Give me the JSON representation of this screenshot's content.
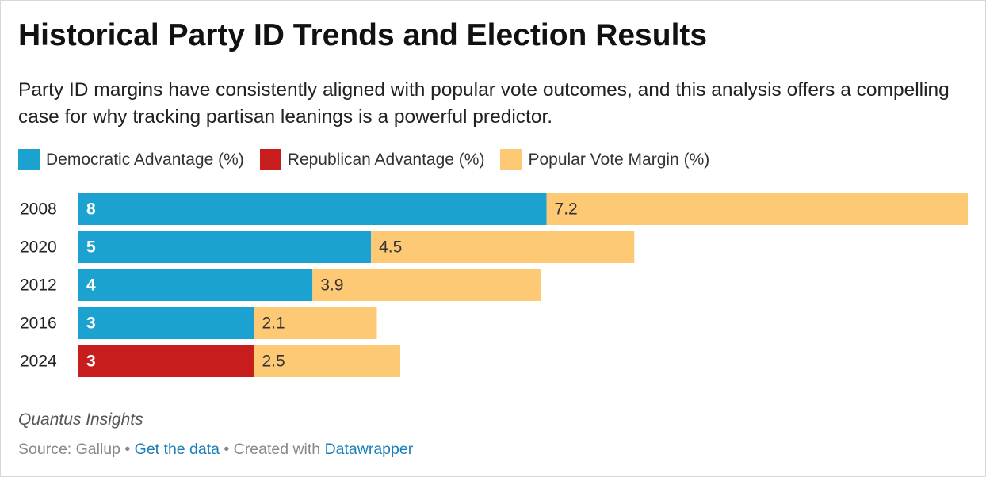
{
  "chart_data": {
    "type": "stacked-bar",
    "title": "Historical Party ID Trends and Election Results",
    "subtitle": "Party ID margins have consistently aligned with popular vote outcomes, and this analysis offers a compelling case for why tracking partisan leanings is a powerful predictor.",
    "categories": [
      "2008",
      "2020",
      "2012",
      "2016",
      "2024"
    ],
    "series": [
      {
        "name": "Democratic Advantage (%)",
        "color": "#1ba2d0",
        "values": [
          8,
          5,
          4,
          3,
          null
        ]
      },
      {
        "name": "Republican Advantage (%)",
        "color": "#c71e1d",
        "values": [
          null,
          null,
          null,
          null,
          3
        ]
      },
      {
        "name": "Popular Vote Margin (%)",
        "color": "#fdc975",
        "values": [
          7.2,
          4.5,
          3.9,
          2.1,
          2.5
        ]
      }
    ],
    "xlim": [
      0,
      15.2
    ],
    "byline": "Quantus Insights",
    "source": "Source: Gallup",
    "separator": "•",
    "data_link": "Get the data",
    "credit": "Created with",
    "credit_link": "Datawrapper"
  }
}
